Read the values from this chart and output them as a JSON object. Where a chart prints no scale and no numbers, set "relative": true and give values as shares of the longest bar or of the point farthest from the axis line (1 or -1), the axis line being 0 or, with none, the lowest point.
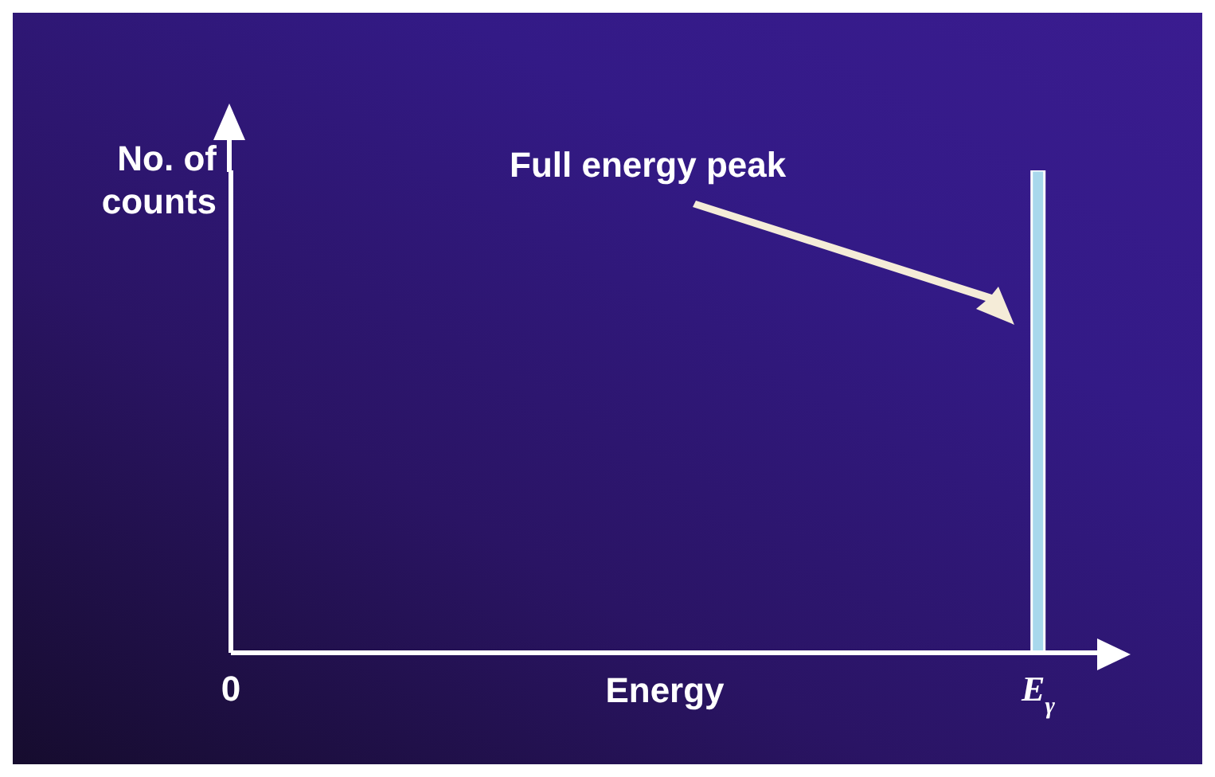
{
  "chart_data": {
    "type": "bar",
    "relative": true,
    "categories": [
      "0",
      null,
      null,
      null,
      null,
      null,
      null,
      null,
      null,
      null,
      null,
      null,
      "E$_{γ}$"
    ],
    "values": [
      null,
      null,
      null,
      null,
      null,
      null,
      null,
      null,
      null,
      null,
      null,
      null,
      1
    ],
    "color": "#a8d8ec",
    "xlabel": "Energy",
    "ylabel": "No. of counts",
    "annotations": [
      "Full energy peak"
    ],
    "grid": false,
    "legend": false
  }
}
